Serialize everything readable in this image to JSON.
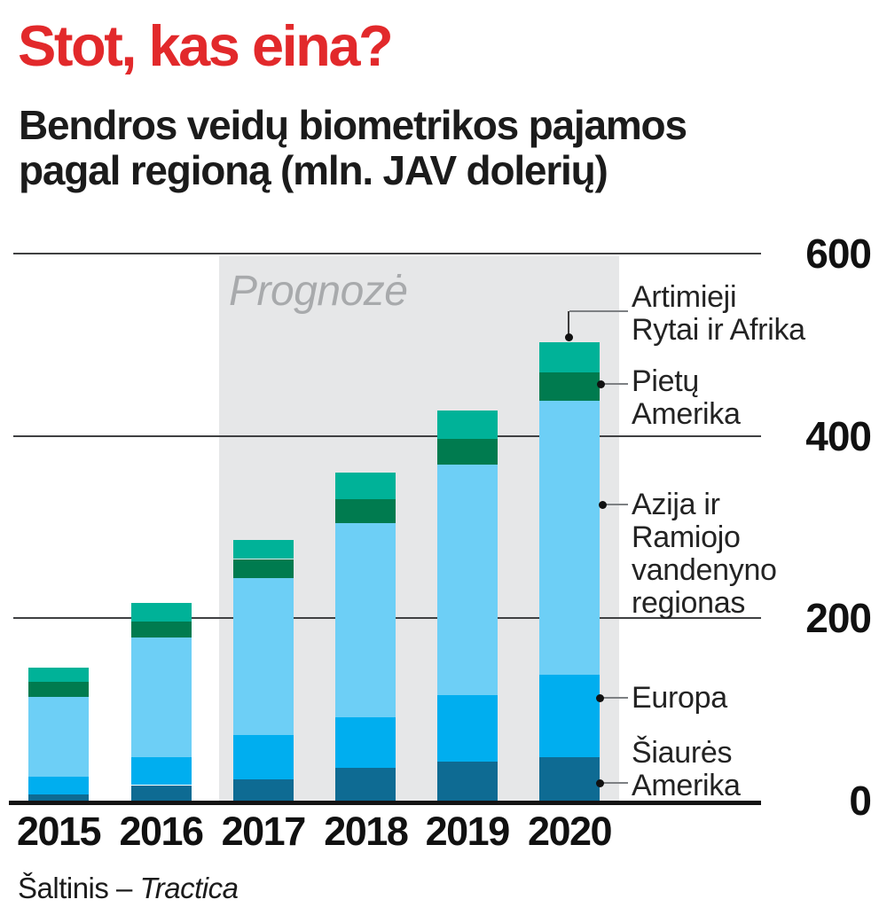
{
  "title": "Stot, kas eina?",
  "subtitle": {
    "line1": "Bendros veidų biometrikos pajamos",
    "line2": "pagal regioną (mln. JAV dolerių)"
  },
  "forecast_label": "Prognozė",
  "source": {
    "prefix": "Šaltinis – ",
    "name": "Tractica"
  },
  "colors": {
    "title_red": "#e2292b",
    "text_black": "#1b1b1b",
    "north_america": "#0e6b93",
    "europa": "#00aeef",
    "apac": "#6dcff6",
    "pietu_amerika": "#007b4f",
    "mea": "#00b298",
    "forecast_bg": "#e6e7e8",
    "forecast_text": "#a8aaac",
    "gridline": "#3f4042",
    "axis": "#141414",
    "leader": "#7d8083"
  },
  "chart_data": {
    "type": "bar",
    "stacked": true,
    "title": "Bendros veidų biometrikos pajamos pagal regioną (mln. JAV dolerių)",
    "categories": [
      "2015",
      "2016",
      "2017",
      "2018",
      "2019",
      "2020"
    ],
    "series_bottom_to_top": [
      {
        "name": "Šiaurės Amerika",
        "color_key": "north_america",
        "values": [
          7,
          17,
          23,
          36,
          43,
          48
        ]
      },
      {
        "name": "Europa",
        "color_key": "europa",
        "values": [
          19,
          31,
          49,
          55,
          73,
          90
        ]
      },
      {
        "name": "Azija ir Ramiojo vandenyno regionas",
        "color_key": "apac",
        "values": [
          88,
          131,
          172,
          213,
          253,
          301
        ]
      },
      {
        "name": "Pietų Amerika",
        "color_key": "pietu_amerika",
        "values": [
          16,
          17,
          21,
          27,
          28,
          31
        ]
      },
      {
        "name": "Artimieji Rytai ir Afrika",
        "color_key": "mea",
        "values": [
          16,
          21,
          21,
          29,
          31,
          33
        ]
      }
    ],
    "totals": [
      146,
      217,
      286,
      360,
      428,
      503
    ],
    "ylim": [
      0,
      600
    ],
    "yticks": [
      0,
      200,
      400,
      600
    ],
    "grid": "horizontal",
    "forecast_categories": [
      "2017",
      "2018",
      "2019",
      "2020"
    ],
    "legend_position": "right-annotations"
  },
  "annotations": {
    "mea": {
      "lines": [
        "Artimieji",
        "Rytai ir Afrika"
      ]
    },
    "pietu": {
      "lines": [
        "Pietų",
        "Amerika"
      ]
    },
    "apac": {
      "lines": [
        "Azija ir",
        "Ramiojo",
        "vandenyno",
        "regionas"
      ]
    },
    "europa": {
      "lines": [
        "Europa"
      ]
    },
    "siaures": {
      "lines": [
        "Šiaurės",
        "Amerika"
      ]
    }
  }
}
